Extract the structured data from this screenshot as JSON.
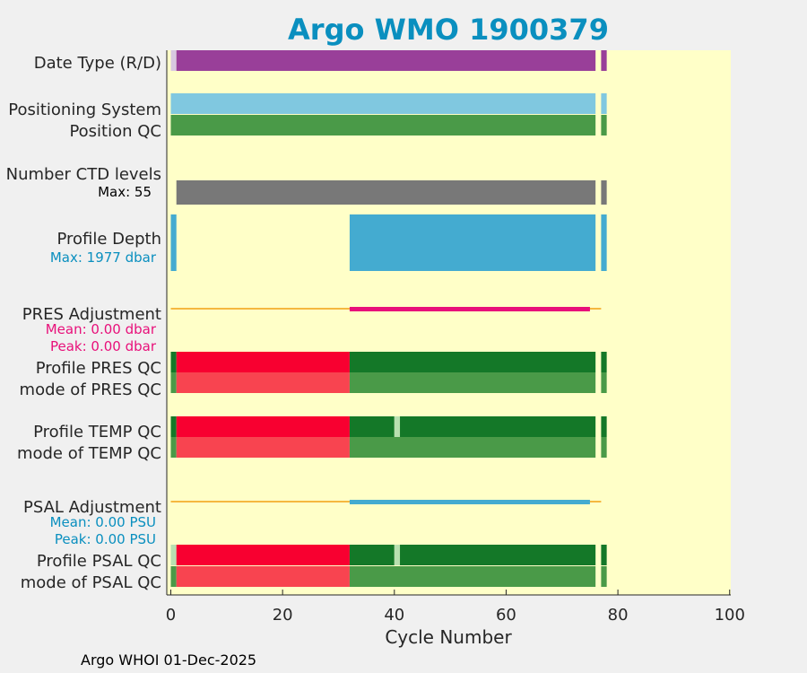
{
  "title": "Argo WMO 1900379",
  "footer": "Argo WHOI 01-Dec-2025",
  "colors": {
    "title": "#0a8fbf",
    "plot_bg": "#ffffc8",
    "page_bg": "#f0f0f0",
    "date_type": "#993f99",
    "date_type_pre": "#d8c8e0",
    "positioning": "#80c8e0",
    "position_qc": "#4a9a48",
    "ctd_levels": "#787878",
    "profile_depth": "#44abd0",
    "adjustment_baseline": "#f5b840",
    "pres_adjustment": "#e8107a",
    "psal_adjustment": "#44abd0",
    "pres_label": "#e8107a",
    "psal_label": "#0a8fbf",
    "qc_good_dark": "#147828",
    "qc_good": "#4a9a48",
    "qc_bad_dark": "#f80030",
    "qc_bad": "#f84450",
    "qc_light": "#b8e0b0"
  },
  "chart_data": {
    "type": "bar",
    "title": "Argo WMO 1900379",
    "xlabel": "Cycle Number",
    "xlim": [
      0,
      100
    ],
    "xticks": [
      "0",
      "20",
      "40",
      "60",
      "80",
      "100"
    ],
    "xtick_values": [
      0,
      20,
      40,
      60,
      80,
      100
    ],
    "cycles_plotted": [
      0,
      77
    ],
    "missing_cycles": [
      76
    ],
    "rows": [
      {
        "label": "Date Type (R/D)",
        "segments": [
          [
            0,
            1,
            "date_type_pre"
          ],
          [
            1,
            76,
            "date_type"
          ],
          [
            77,
            78,
            "date_type"
          ]
        ]
      },
      {
        "label": "Positioning System",
        "segments": [
          [
            0,
            76,
            "positioning"
          ],
          [
            77,
            78,
            "positioning"
          ]
        ]
      },
      {
        "label": "Position QC",
        "segments": [
          [
            0,
            76,
            "position_qc"
          ],
          [
            77,
            78,
            "position_qc"
          ]
        ]
      },
      {
        "label": "Number CTD levels",
        "max_label": "Max: 55",
        "max_value": 55,
        "segments": [
          [
            1,
            76,
            "ctd_levels"
          ],
          [
            77,
            78,
            "ctd_levels"
          ]
        ]
      },
      {
        "label": "Profile Depth",
        "max_label": "Max: 1977 dbar",
        "max_value": 1977,
        "segments": [
          [
            0,
            1,
            "profile_depth"
          ],
          [
            32,
            76,
            "profile_depth"
          ],
          [
            77,
            78,
            "profile_depth"
          ]
        ]
      },
      {
        "label": "PRES Adjustment",
        "mean_label": "Mean: 0.00 dbar",
        "peak_label": "Peak: 0.00 dbar",
        "baseline": [
          0,
          77
        ],
        "adjusted": [
          32,
          75
        ]
      },
      {
        "label": "Profile PRES QC",
        "segments": [
          [
            0,
            1,
            "qc_good_dark"
          ],
          [
            1,
            32,
            "qc_bad_dark"
          ],
          [
            32,
            76,
            "qc_good_dark"
          ],
          [
            77,
            78,
            "qc_good_dark"
          ]
        ]
      },
      {
        "label": "mode of PRES QC",
        "segments": [
          [
            0,
            1,
            "qc_good"
          ],
          [
            1,
            32,
            "qc_bad"
          ],
          [
            32,
            76,
            "qc_good"
          ],
          [
            77,
            78,
            "qc_good"
          ]
        ]
      },
      {
        "label": "Profile TEMP QC",
        "segments": [
          [
            0,
            1,
            "qc_good_dark"
          ],
          [
            1,
            32,
            "qc_bad_dark"
          ],
          [
            32,
            40,
            "qc_good_dark"
          ],
          [
            40,
            41,
            "qc_light"
          ],
          [
            41,
            76,
            "qc_good_dark"
          ],
          [
            77,
            78,
            "qc_good_dark"
          ]
        ]
      },
      {
        "label": "mode of TEMP QC",
        "segments": [
          [
            0,
            1,
            "qc_good"
          ],
          [
            1,
            32,
            "qc_bad"
          ],
          [
            32,
            76,
            "qc_good"
          ],
          [
            77,
            78,
            "qc_good"
          ]
        ]
      },
      {
        "label": "PSAL Adjustment",
        "mean_label": "Mean: 0.00 PSU",
        "peak_label": "Peak: 0.00 PSU",
        "baseline": [
          0,
          77
        ],
        "adjusted": [
          32,
          75
        ]
      },
      {
        "label": "Profile PSAL QC",
        "segments": [
          [
            0,
            1,
            "qc_light"
          ],
          [
            1,
            32,
            "qc_bad_dark"
          ],
          [
            32,
            40,
            "qc_good_dark"
          ],
          [
            40,
            41,
            "qc_light"
          ],
          [
            41,
            76,
            "qc_good_dark"
          ],
          [
            77,
            78,
            "qc_good_dark"
          ]
        ]
      },
      {
        "label": "mode of PSAL QC",
        "segments": [
          [
            0,
            1,
            "qc_good"
          ],
          [
            1,
            32,
            "qc_bad"
          ],
          [
            32,
            76,
            "qc_good"
          ],
          [
            77,
            78,
            "qc_good"
          ]
        ]
      }
    ]
  }
}
